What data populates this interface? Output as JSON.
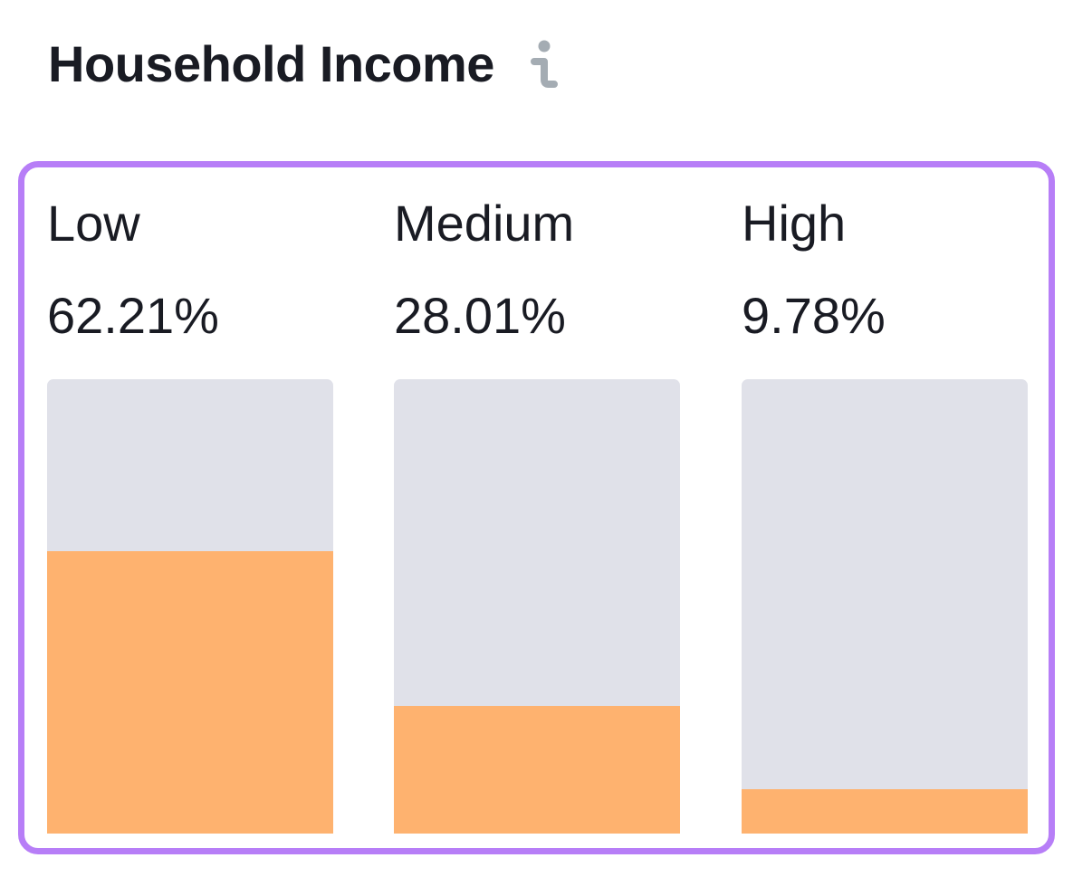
{
  "header": {
    "title": "Household Income",
    "info_icon": "info-icon"
  },
  "colors": {
    "card_border": "#b77ef7",
    "bar_track": "#e0e1e9",
    "bar_fill": "#feb26f",
    "text": "#191b23",
    "icon": "#a4acb3"
  },
  "chart_data": {
    "type": "bar",
    "title": "Household Income",
    "categories": [
      "Low",
      "Medium",
      "High"
    ],
    "values": [
      62.21,
      28.01,
      9.78
    ],
    "value_labels": [
      "62.21%",
      "28.01%",
      "9.78%"
    ],
    "unit": "%",
    "ylim": [
      0,
      100
    ],
    "grid": false,
    "legend": "none"
  }
}
